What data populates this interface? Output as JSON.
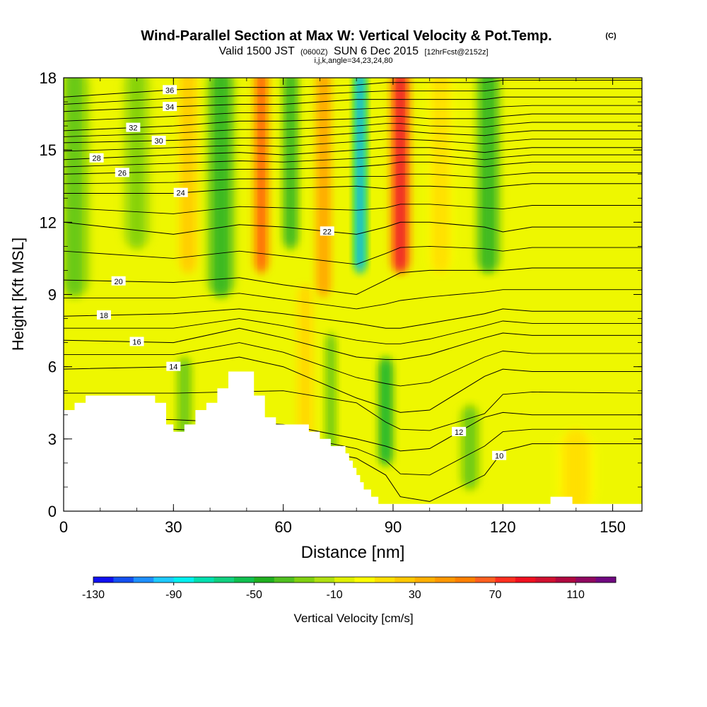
{
  "chart_data": {
    "type": "heatmap",
    "title": "Wind-Parallel Section at Max W: Vertical Velocity & Pot.Temp.",
    "title_mark": "(C)",
    "subtitle_parts": [
      "Valid 1500 JST",
      "(0600Z)",
      "SUN 6 Dec 2015",
      "[12hrFcst@2152z]"
    ],
    "subtitle2": "i,j,k,angle=34,23,24,80",
    "xlabel": "Distance [nm]",
    "ylabel": "Height [Kft MSL]",
    "xlim": [
      0,
      158
    ],
    "ylim": [
      0,
      18
    ],
    "x_ticks": [
      "0",
      "30",
      "60",
      "90",
      "120",
      "150"
    ],
    "y_ticks": [
      "0",
      "3",
      "6",
      "9",
      "12",
      "15",
      "18"
    ],
    "grid": false,
    "colorbar": {
      "label": "Vertical Velocity [cm/s]",
      "tick_labels": [
        "-130",
        "-90",
        "-50",
        "-10",
        "30",
        "70",
        "110"
      ],
      "colors": [
        "#1010f0",
        "#1450f0",
        "#1e90ff",
        "#1ecaff",
        "#00f0f0",
        "#00e0b0",
        "#10d080",
        "#10c050",
        "#20b020",
        "#50c020",
        "#80d010",
        "#b0e010",
        "#e0f000",
        "#ffff00",
        "#ffe000",
        "#ffc800",
        "#ffb000",
        "#ff9800",
        "#ff8000",
        "#ff6020",
        "#ff3020",
        "#f01020",
        "#d01030",
        "#b00840",
        "#900860",
        "#700880"
      ]
    },
    "wind_regions": [
      {
        "x": 3,
        "w": 8,
        "h0": 9,
        "h1": 18,
        "value": -35
      },
      {
        "x": 20,
        "w": 7,
        "h0": 11,
        "h1": 18,
        "value": -25
      },
      {
        "x": 34,
        "w": 5,
        "h0": 10,
        "h1": 18,
        "value": 25
      },
      {
        "x": 43,
        "w": 7,
        "h0": 9,
        "h1": 18,
        "value": -45
      },
      {
        "x": 54,
        "w": 4,
        "h0": 10,
        "h1": 18,
        "value": 70
      },
      {
        "x": 62,
        "w": 4,
        "h0": 11,
        "h1": 18,
        "value": -45
      },
      {
        "x": 71,
        "w": 4,
        "h0": 9,
        "h1": 18,
        "value": 45
      },
      {
        "x": 81,
        "w": 3,
        "h0": 10,
        "h1": 18,
        "value": -110
      },
      {
        "x": 92,
        "w": 5,
        "h0": 10,
        "h1": 18,
        "value": 90
      },
      {
        "x": 103,
        "w": 6,
        "h0": 10,
        "h1": 18,
        "value": 15
      },
      {
        "x": 116,
        "w": 6,
        "h0": 10,
        "h1": 18,
        "value": -45
      },
      {
        "x": 66,
        "w": 4,
        "h0": 2,
        "h1": 9,
        "value": 20
      },
      {
        "x": 73,
        "w": 3,
        "h0": 2,
        "h1": 7,
        "value": -35
      },
      {
        "x": 88,
        "w": 4,
        "h0": 2,
        "h1": 6,
        "value": -55
      },
      {
        "x": 111,
        "w": 5,
        "h0": 1,
        "h1": 4,
        "value": -35
      },
      {
        "x": 33,
        "w": 4,
        "h0": 3,
        "h1": 6,
        "value": -35
      },
      {
        "x": 140,
        "w": 10,
        "h0": 0,
        "h1": 3,
        "value": 15
      }
    ],
    "terrain": [
      [
        0,
        4.2
      ],
      [
        3,
        4.2
      ],
      [
        3,
        4.5
      ],
      [
        6,
        4.5
      ],
      [
        6,
        4.8
      ],
      [
        25,
        4.8
      ],
      [
        25,
        4.5
      ],
      [
        28,
        4.5
      ],
      [
        28,
        3.6
      ],
      [
        30,
        3.6
      ],
      [
        30,
        3.3
      ],
      [
        33,
        3.3
      ],
      [
        33,
        3.6
      ],
      [
        36,
        3.6
      ],
      [
        36,
        4.2
      ],
      [
        39,
        4.2
      ],
      [
        39,
        4.5
      ],
      [
        42,
        4.5
      ],
      [
        42,
        5.1
      ],
      [
        45,
        5.1
      ],
      [
        45,
        5.8
      ],
      [
        52,
        5.8
      ],
      [
        52,
        4.8
      ],
      [
        55,
        4.8
      ],
      [
        55,
        3.9
      ],
      [
        58,
        3.9
      ],
      [
        58,
        3.6
      ],
      [
        67,
        3.6
      ],
      [
        67,
        3.3
      ],
      [
        70,
        3.3
      ],
      [
        70,
        3.0
      ],
      [
        73,
        3.0
      ],
      [
        73,
        2.7
      ],
      [
        77,
        2.7
      ],
      [
        77,
        2.4
      ],
      [
        78,
        2.4
      ],
      [
        78,
        2.1
      ],
      [
        79,
        2.1
      ],
      [
        79,
        1.8
      ],
      [
        80,
        1.8
      ],
      [
        80,
        1.5
      ],
      [
        81,
        1.5
      ],
      [
        81,
        1.2
      ],
      [
        82,
        1.2
      ],
      [
        82,
        0.9
      ],
      [
        84,
        0.9
      ],
      [
        84,
        0.6
      ],
      [
        86,
        0.6
      ],
      [
        86,
        0.3
      ],
      [
        133,
        0.3
      ],
      [
        133,
        0.6
      ],
      [
        139,
        0.6
      ],
      [
        139,
        0.3
      ],
      [
        158,
        0.3
      ]
    ],
    "theta_levels": [
      {
        "label": "10",
        "shape": [
          [
            0,
            3.1
          ],
          [
            30,
            3.0
          ],
          [
            60,
            2.8
          ],
          [
            80,
            2.2
          ],
          [
            88,
            1.5
          ],
          [
            92,
            0.6
          ],
          [
            100,
            0.4
          ],
          [
            115,
            1.5
          ],
          [
            120,
            2.5
          ],
          [
            128,
            2.8
          ],
          [
            158,
            2.8
          ]
        ],
        "label_x": 119
      },
      {
        "label": "12",
        "shape": [
          [
            0,
            3.9
          ],
          [
            30,
            3.8
          ],
          [
            60,
            3.6
          ],
          [
            80,
            3.0
          ],
          [
            88,
            2.7
          ],
          [
            92,
            2.5
          ],
          [
            100,
            2.6
          ],
          [
            115,
            3.9
          ],
          [
            120,
            4.1
          ],
          [
            128,
            4.0
          ],
          [
            158,
            4.0
          ]
        ],
        "label_x": 108
      },
      {
        "label": "14",
        "shape": [
          [
            0,
            5.9
          ],
          [
            30,
            6.0
          ],
          [
            48,
            6.4
          ],
          [
            60,
            6.0
          ],
          [
            80,
            4.7
          ],
          [
            88,
            4.3
          ],
          [
            92,
            4.1
          ],
          [
            100,
            4.2
          ],
          [
            115,
            5.6
          ],
          [
            120,
            5.9
          ],
          [
            128,
            5.8
          ],
          [
            158,
            5.8
          ]
        ],
        "label_x": 30
      },
      {
        "label": "16",
        "shape": [
          [
            0,
            7.1
          ],
          [
            30,
            7.0
          ],
          [
            48,
            7.6
          ],
          [
            60,
            7.2
          ],
          [
            80,
            6.4
          ],
          [
            88,
            6.3
          ],
          [
            92,
            6.3
          ],
          [
            100,
            6.5
          ],
          [
            115,
            7.2
          ],
          [
            120,
            7.4
          ],
          [
            128,
            7.3
          ],
          [
            158,
            7.3
          ]
        ],
        "label_x": 20
      },
      {
        "label": "18",
        "shape": [
          [
            0,
            8.1
          ],
          [
            30,
            8.2
          ],
          [
            48,
            8.4
          ],
          [
            60,
            8.2
          ],
          [
            80,
            7.8
          ],
          [
            88,
            7.6
          ],
          [
            92,
            7.6
          ],
          [
            100,
            7.8
          ],
          [
            115,
            8.2
          ],
          [
            120,
            8.4
          ],
          [
            128,
            8.3
          ],
          [
            158,
            8.3
          ]
        ],
        "label_x": 11
      },
      {
        "label": "20",
        "shape": [
          [
            0,
            9.6
          ],
          [
            30,
            9.5
          ],
          [
            48,
            9.7
          ],
          [
            60,
            9.4
          ],
          [
            80,
            9.0
          ],
          [
            88,
            9.6
          ],
          [
            92,
            9.9
          ],
          [
            100,
            10.0
          ],
          [
            115,
            10.0
          ],
          [
            120,
            10.0
          ],
          [
            128,
            10.1
          ],
          [
            158,
            10.1
          ]
        ],
        "label_x": 15
      },
      {
        "label": "22",
        "shape": [
          [
            0,
            12.0
          ],
          [
            30,
            11.5
          ],
          [
            48,
            11.9
          ],
          [
            60,
            11.8
          ],
          [
            80,
            11.5
          ],
          [
            88,
            11.8
          ],
          [
            92,
            12.0
          ],
          [
            100,
            12.0
          ],
          [
            115,
            11.8
          ],
          [
            120,
            11.6
          ],
          [
            128,
            11.8
          ],
          [
            158,
            11.8
          ]
        ],
        "label_x": 72
      },
      {
        "label": "24",
        "shape": [
          [
            0,
            13.2
          ],
          [
            30,
            13.2
          ],
          [
            48,
            13.4
          ],
          [
            60,
            13.4
          ],
          [
            80,
            13.5
          ],
          [
            88,
            13.4
          ],
          [
            92,
            13.5
          ],
          [
            100,
            13.5
          ],
          [
            115,
            13.4
          ],
          [
            120,
            13.5
          ],
          [
            128,
            13.6
          ],
          [
            158,
            13.6
          ]
        ],
        "label_x": 32
      },
      {
        "label": "26",
        "shape": [
          [
            0,
            14.0
          ],
          [
            30,
            14.1
          ],
          [
            48,
            14.2
          ],
          [
            60,
            14.2
          ],
          [
            80,
            14.3
          ],
          [
            88,
            14.4
          ],
          [
            92,
            14.5
          ],
          [
            100,
            14.5
          ],
          [
            115,
            14.3
          ],
          [
            120,
            14.4
          ],
          [
            128,
            14.5
          ],
          [
            158,
            14.5
          ]
        ],
        "label_x": 16
      },
      {
        "label": "28",
        "shape": [
          [
            0,
            14.6
          ],
          [
            30,
            14.8
          ],
          [
            48,
            14.9
          ],
          [
            60,
            14.8
          ],
          [
            80,
            15.0
          ],
          [
            88,
            15.1
          ],
          [
            92,
            15.1
          ],
          [
            100,
            15.1
          ],
          [
            115,
            14.9
          ],
          [
            120,
            15.0
          ],
          [
            128,
            15.1
          ],
          [
            158,
            15.1
          ]
        ],
        "label_x": 9
      },
      {
        "label": "30",
        "shape": [
          [
            0,
            15.3
          ],
          [
            30,
            15.4
          ],
          [
            48,
            15.5
          ],
          [
            60,
            15.5
          ],
          [
            80,
            15.7
          ],
          [
            88,
            15.8
          ],
          [
            92,
            15.8
          ],
          [
            100,
            15.7
          ],
          [
            115,
            15.6
          ],
          [
            120,
            15.7
          ],
          [
            128,
            15.8
          ],
          [
            158,
            15.8
          ]
        ],
        "label_x": 26
      },
      {
        "label": "32",
        "shape": [
          [
            0,
            15.8
          ],
          [
            30,
            16.0
          ],
          [
            48,
            16.2
          ],
          [
            60,
            16.2
          ],
          [
            80,
            16.3
          ],
          [
            88,
            16.4
          ],
          [
            92,
            16.4
          ],
          [
            100,
            16.3
          ],
          [
            115,
            16.3
          ],
          [
            120,
            16.4
          ],
          [
            128,
            16.5
          ],
          [
            158,
            16.5
          ]
        ],
        "label_x": 19
      },
      {
        "label": "34",
        "shape": [
          [
            0,
            16.6
          ],
          [
            30,
            16.8
          ],
          [
            48,
            16.9
          ],
          [
            60,
            16.9
          ],
          [
            80,
            17.1
          ],
          [
            88,
            17.1
          ],
          [
            92,
            17.1
          ],
          [
            100,
            17.1
          ],
          [
            115,
            17.1
          ],
          [
            120,
            17.2
          ],
          [
            128,
            17.2
          ],
          [
            158,
            17.2
          ]
        ],
        "label_x": 29
      },
      {
        "label": "36",
        "shape": [
          [
            0,
            17.2
          ],
          [
            30,
            17.5
          ],
          [
            48,
            17.6
          ],
          [
            60,
            17.6
          ],
          [
            80,
            17.7
          ],
          [
            88,
            17.8
          ],
          [
            92,
            17.8
          ],
          [
            100,
            17.8
          ],
          [
            115,
            17.8
          ],
          [
            120,
            17.9
          ],
          [
            128,
            17.9
          ],
          [
            158,
            17.9
          ]
        ],
        "label_x": 29
      }
    ]
  }
}
